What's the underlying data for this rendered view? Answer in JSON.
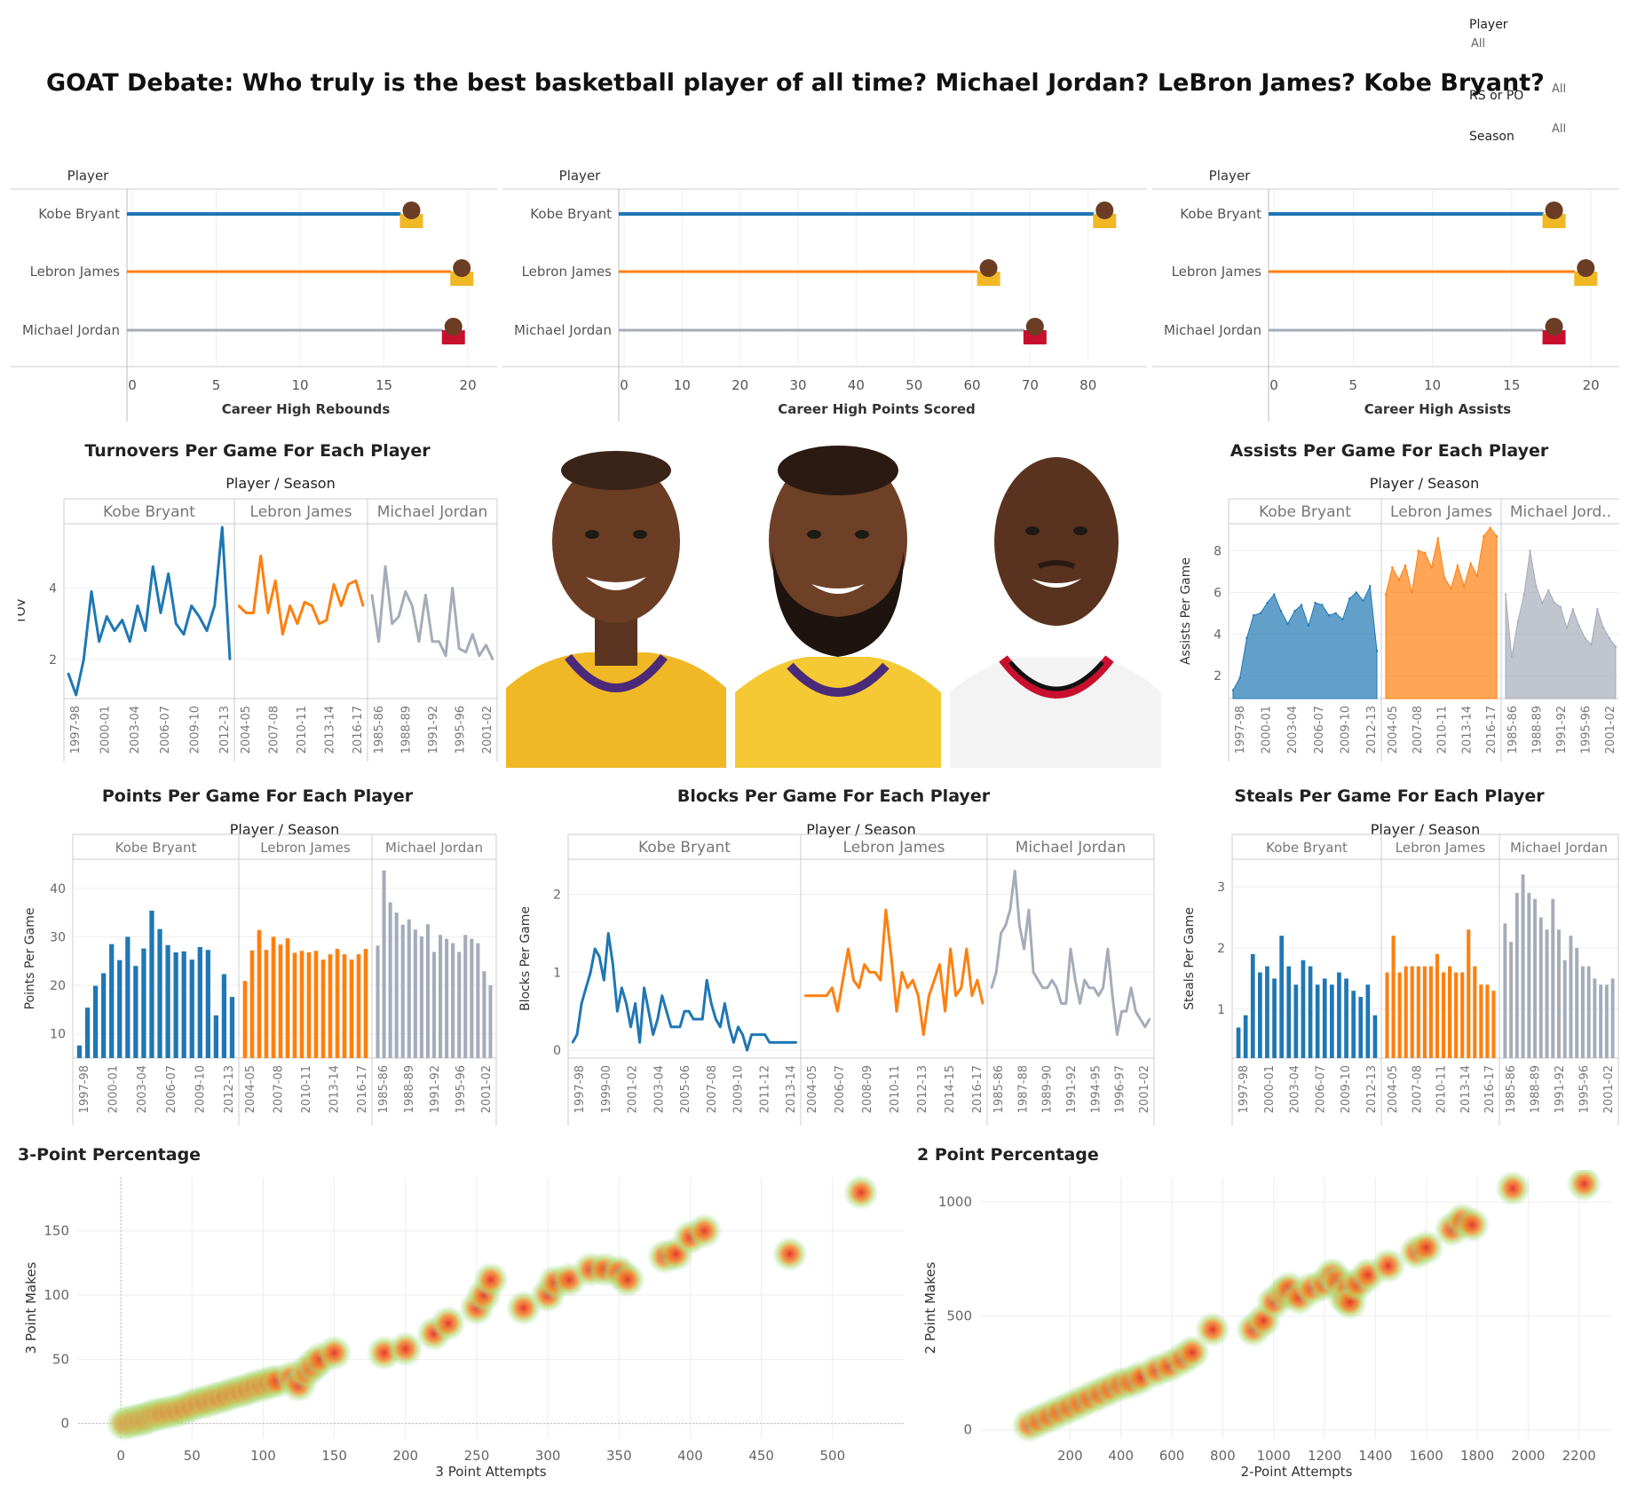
{
  "header": {
    "title": "GOAT Debate: Who truly is the best basketball player of all time? Michael Jordan? LeBron James? Kobe Bryant?"
  },
  "filters": {
    "player_label": "Player",
    "player_value": "All",
    "rs_label": "RS or PO",
    "rs_value": "All",
    "season_label": "Season",
    "season_value": "All"
  },
  "colors": {
    "kobe": "#1f77b4",
    "lebron": "#ff7f0e",
    "jordan": "#a5acb9"
  },
  "icons": [
    "kobe-avatar-icon",
    "lebron-avatar-icon",
    "jordan-avatar-icon"
  ],
  "chart_data": [
    {
      "id": "rebounds",
      "type": "bar",
      "title": "",
      "xlabel": "Career High Rebounds",
      "ylabel": "Player",
      "categories": [
        "Kobe Bryant",
        "Lebron James",
        "Michael Jordan"
      ],
      "values": [
        16,
        19,
        18.5
      ],
      "xlim": [
        0,
        21
      ],
      "ticks": [
        0,
        5,
        10,
        15,
        20
      ]
    },
    {
      "id": "points",
      "type": "bar",
      "title": "",
      "xlabel": "Career High Points Scored",
      "ylabel": "Player",
      "categories": [
        "Kobe Bryant",
        "Lebron James",
        "Michael Jordan"
      ],
      "values": [
        81,
        61,
        69
      ],
      "xlim": [
        0,
        88
      ],
      "ticks": [
        0,
        10,
        20,
        30,
        40,
        50,
        60,
        70,
        80
      ]
    },
    {
      "id": "assists",
      "type": "bar",
      "title": "",
      "xlabel": "Career High Assists",
      "ylabel": "Player",
      "categories": [
        "Kobe Bryant",
        "Lebron James",
        "Michael Jordan"
      ],
      "values": [
        17,
        19,
        17
      ],
      "xlim": [
        0,
        21
      ],
      "ticks": [
        0,
        5,
        10,
        15,
        20
      ]
    },
    {
      "id": "tov",
      "type": "line",
      "title": "Turnovers Per Game For Each Player",
      "header": "Player / Season",
      "ylabel": "TOV",
      "ylim": [
        0.9,
        5.8
      ],
      "yticks": [
        2,
        4
      ],
      "panels": [
        {
          "name": "Kobe Bryant",
          "ticks": [
            "1997-98",
            "2000-01",
            "2003-04",
            "2006-07",
            "2009-10",
            "2012-13"
          ],
          "values": [
            1.6,
            1.0,
            2.0,
            3.9,
            2.5,
            3.2,
            2.8,
            3.1,
            2.5,
            3.5,
            2.8,
            4.6,
            3.3,
            4.4,
            3.0,
            2.7,
            3.5,
            3.2,
            2.8,
            3.5,
            5.7,
            2.0
          ]
        },
        {
          "name": "Lebron James",
          "ticks": [
            "2004-05",
            "2007-08",
            "2010-11",
            "2013-14",
            "2016-17"
          ],
          "values": [
            3.5,
            3.3,
            3.3,
            4.9,
            3.3,
            4.2,
            2.7,
            3.5,
            3.0,
            3.6,
            3.5,
            3.0,
            3.1,
            4.1,
            3.5,
            4.1,
            4.2,
            3.5
          ]
        },
        {
          "name": "Michael Jordan",
          "ticks": [
            "1985-86",
            "1988-89",
            "1991-92",
            "1995-96",
            "2001-02"
          ],
          "values": [
            3.8,
            2.5,
            4.6,
            3.0,
            3.2,
            3.9,
            3.5,
            2.5,
            3.8,
            2.5,
            2.5,
            2.1,
            4.0,
            2.3,
            2.2,
            2.7,
            2.1,
            2.4,
            2.0
          ]
        }
      ]
    },
    {
      "id": "ast",
      "type": "area",
      "title": "Assists Per Game For Each Player",
      "header": "Player / Season",
      "ylabel": "Assists Per Game",
      "ylim": [
        0.9,
        9.3
      ],
      "yticks": [
        2,
        4,
        6,
        8
      ],
      "panels": [
        {
          "name": "Kobe Bryant",
          "ticks": [
            "1997-98",
            "2000-01",
            "2003-04",
            "2006-07",
            "2009-10",
            "2012-13"
          ],
          "values": [
            1.3,
            1.9,
            3.8,
            4.9,
            5.0,
            5.5,
            5.9,
            5.1,
            4.5,
            5.1,
            5.4,
            4.4,
            5.5,
            5.4,
            4.9,
            5.0,
            4.7,
            5.7,
            6.0,
            5.6,
            6.3,
            3.2
          ]
        },
        {
          "name": "Lebron James",
          "ticks": [
            "2004-05",
            "2007-08",
            "2010-11",
            "2013-14",
            "2016-17"
          ],
          "values": [
            5.9,
            7.2,
            6.6,
            7.3,
            6.0,
            8.0,
            7.9,
            7.2,
            8.6,
            6.7,
            6.2,
            7.3,
            6.3,
            7.4,
            6.8,
            8.7,
            9.1,
            8.7
          ]
        },
        {
          "name": "Michael Jord..",
          "ticks": [
            "1985-86",
            "1988-89",
            "1991-92",
            "1995-96",
            "2001-02"
          ],
          "values": [
            5.9,
            2.9,
            4.6,
            5.9,
            8.0,
            6.3,
            5.5,
            6.1,
            5.5,
            5.3,
            4.3,
            5.2,
            4.4,
            3.8,
            3.5,
            5.2,
            4.3,
            3.8,
            3.4
          ]
        }
      ]
    },
    {
      "id": "pts",
      "type": "bar",
      "title": "Points Per Game For Each Player",
      "header": "Player / Season",
      "ylabel": "Points Per Game",
      "ylim": [
        5,
        46
      ],
      "yticks": [
        10,
        20,
        30,
        40
      ],
      "panels": [
        {
          "name": "Kobe Bryant",
          "ticks": [
            "1997-98",
            "2000-01",
            "2003-04",
            "2006-07",
            "2009-10",
            "2012-13"
          ],
          "values": [
            7.6,
            15.4,
            19.9,
            22.5,
            28.5,
            25.2,
            30.0,
            24.0,
            27.6,
            35.4,
            31.6,
            28.3,
            26.8,
            27.0,
            25.3,
            27.9,
            27.3,
            13.8,
            22.3,
            17.6
          ]
        },
        {
          "name": "Lebron James",
          "ticks": [
            "2004-05",
            "2007-08",
            "2010-11",
            "2013-14",
            "2016-17"
          ],
          "values": [
            20.9,
            27.2,
            31.4,
            27.3,
            30.0,
            28.4,
            29.7,
            26.7,
            27.1,
            26.8,
            27.1,
            25.3,
            26.4,
            27.5,
            26.4,
            25.3,
            26.4,
            27.5
          ]
        },
        {
          "name": "Michael Jordan",
          "ticks": [
            "1985-86",
            "1988-89",
            "1991-92",
            "1995-96",
            "2001-02"
          ],
          "values": [
            28.2,
            43.7,
            37.1,
            35.0,
            32.5,
            33.6,
            31.5,
            30.1,
            32.6,
            26.9,
            30.4,
            29.6,
            28.7,
            26.9,
            30.4,
            29.6,
            28.7,
            22.9,
            20.0
          ]
        }
      ]
    },
    {
      "id": "blk",
      "type": "line",
      "title": "Blocks Per Game For Each Player",
      "header": "Player / Season",
      "ylabel": "Blocks Per Game",
      "ylim": [
        -0.1,
        2.45
      ],
      "yticks": [
        0,
        1,
        2
      ],
      "panels": [
        {
          "name": "Kobe Bryant",
          "ticks": [
            "1997-98",
            "1999-00",
            "2001-02",
            "2003-04",
            "2005-06",
            "2007-08",
            "2009-10",
            "2011-12",
            "2013-14"
          ],
          "values": [
            0.1,
            0.2,
            0.6,
            0.8,
            1.0,
            1.3,
            1.2,
            0.9,
            1.5,
            1.1,
            0.5,
            0.8,
            0.6,
            0.3,
            0.6,
            0.1,
            0.8,
            0.5,
            0.2,
            0.4,
            0.7,
            0.5,
            0.3,
            0.3,
            0.3,
            0.5,
            0.5,
            0.4,
            0.4,
            0.4,
            0.9,
            0.6,
            0.4,
            0.3,
            0.6,
            0.3,
            0.1,
            0.3,
            0.2,
            0.0,
            0.2,
            0.2,
            0.2,
            0.2,
            0.1,
            0.1,
            0.1,
            0.1,
            0.1,
            0.1,
            0.1
          ]
        },
        {
          "name": "Lebron James",
          "ticks": [
            "2004-05",
            "2006-07",
            "2008-09",
            "2010-11",
            "2012-13",
            "2014-15",
            "2016-17"
          ],
          "values": [
            0.7,
            0.7,
            0.7,
            0.7,
            0.7,
            0.8,
            0.5,
            0.9,
            1.3,
            0.9,
            0.8,
            1.1,
            1.0,
            1.0,
            0.9,
            1.8,
            1.2,
            0.5,
            1.0,
            0.8,
            0.9,
            0.7,
            0.2,
            0.7,
            0.9,
            1.1,
            0.5,
            1.3,
            0.7,
            0.8,
            1.3,
            0.7,
            0.9,
            0.6
          ]
        },
        {
          "name": "Michael Jordan",
          "ticks": [
            "1985-86",
            "1987-88",
            "1989-90",
            "1991-92",
            "1994-95",
            "1996-97",
            "2001-02"
          ],
          "values": [
            0.8,
            1.0,
            1.5,
            1.6,
            1.8,
            2.3,
            1.6,
            1.3,
            1.8,
            1.0,
            0.9,
            0.8,
            0.8,
            0.9,
            0.8,
            0.6,
            0.6,
            1.3,
            0.9,
            0.6,
            0.9,
            0.8,
            0.8,
            0.7,
            0.8,
            1.3,
            0.7,
            0.2,
            0.5,
            0.5,
            0.8,
            0.5,
            0.4,
            0.3,
            0.4
          ]
        }
      ]
    },
    {
      "id": "stl",
      "type": "bar",
      "title": "Steals Per Game For Each Player",
      "header": "Player / Season",
      "ylabel": "Steals Per Game",
      "ylim": [
        0.2,
        3.45
      ],
      "yticks": [
        1,
        2,
        3
      ],
      "panels": [
        {
          "name": "Kobe Bryant",
          "ticks": [
            "1997-98",
            "2000-01",
            "2003-04",
            "2006-07",
            "2009-10",
            "2012-13"
          ],
          "values": [
            0.7,
            0.9,
            1.9,
            1.6,
            1.7,
            1.5,
            2.2,
            1.7,
            1.4,
            1.8,
            1.7,
            1.4,
            1.5,
            1.4,
            1.6,
            1.5,
            1.3,
            1.2,
            1.4,
            0.9
          ]
        },
        {
          "name": "Lebron James",
          "ticks": [
            "2004-05",
            "2007-08",
            "2010-11",
            "2013-14",
            "2016-17"
          ],
          "values": [
            1.6,
            2.2,
            1.6,
            1.7,
            1.7,
            1.7,
            1.7,
            1.7,
            1.9,
            1.6,
            1.7,
            1.6,
            1.6,
            2.3,
            1.7,
            1.4,
            1.4,
            1.3
          ]
        },
        {
          "name": "Michael Jordan",
          "ticks": [
            "1985-86",
            "1988-89",
            "1991-92",
            "1995-96",
            "2001-02"
          ],
          "values": [
            2.4,
            2.1,
            2.9,
            3.2,
            2.9,
            2.8,
            2.5,
            2.3,
            2.8,
            2.3,
            1.8,
            2.2,
            2.0,
            1.7,
            1.7,
            1.5,
            1.4,
            1.4,
            1.5
          ]
        }
      ]
    },
    {
      "id": "three",
      "type": "heatmap",
      "title": "3-Point Percentage",
      "xlabel": "3 Point Attempts",
      "ylabel": "3 Point Makes",
      "xlim": [
        -30,
        550
      ],
      "ylim": [
        -12,
        192
      ],
      "xticks": [
        0,
        50,
        100,
        150,
        200,
        250,
        300,
        350,
        400,
        450,
        500
      ],
      "yticks": [
        0,
        50,
        100,
        150
      ],
      "points": [
        [
          2,
          0
        ],
        [
          6,
          1
        ],
        [
          10,
          2
        ],
        [
          14,
          3
        ],
        [
          18,
          4
        ],
        [
          22,
          6
        ],
        [
          26,
          7
        ],
        [
          30,
          8
        ],
        [
          35,
          9
        ],
        [
          40,
          10
        ],
        [
          45,
          12
        ],
        [
          50,
          14
        ],
        [
          55,
          16
        ],
        [
          60,
          17
        ],
        [
          65,
          19
        ],
        [
          70,
          20
        ],
        [
          75,
          22
        ],
        [
          80,
          24
        ],
        [
          85,
          25
        ],
        [
          90,
          27
        ],
        [
          95,
          29
        ],
        [
          100,
          30
        ],
        [
          105,
          32
        ],
        [
          110,
          33
        ],
        [
          120,
          36
        ],
        [
          125,
          30
        ],
        [
          130,
          40
        ],
        [
          135,
          45
        ],
        [
          140,
          50
        ],
        [
          150,
          55
        ],
        [
          185,
          55
        ],
        [
          200,
          58
        ],
        [
          220,
          70
        ],
        [
          230,
          78
        ],
        [
          250,
          90
        ],
        [
          255,
          100
        ],
        [
          260,
          112
        ],
        [
          283,
          90
        ],
        [
          300,
          100
        ],
        [
          305,
          110
        ],
        [
          315,
          112
        ],
        [
          330,
          120
        ],
        [
          340,
          120
        ],
        [
          350,
          118
        ],
        [
          356,
          112
        ],
        [
          382,
          130
        ],
        [
          390,
          132
        ],
        [
          400,
          145
        ],
        [
          410,
          150
        ],
        [
          470,
          132
        ],
        [
          520,
          180
        ]
      ]
    },
    {
      "id": "two",
      "type": "heatmap",
      "title": "2 Point Percentage",
      "xlabel": "2-Point Attempts",
      "ylabel": "2 Point Makes",
      "xlim": [
        -150,
        2330
      ],
      "ylim": [
        -40,
        1110
      ],
      "xticks": [
        200,
        400,
        600,
        800,
        1000,
        1200,
        1400,
        1600,
        1800,
        2000,
        2200
      ],
      "yticks": [
        0,
        500,
        1000
      ],
      "points": [
        [
          40,
          20
        ],
        [
          80,
          40
        ],
        [
          120,
          60
        ],
        [
          160,
          80
        ],
        [
          200,
          100
        ],
        [
          240,
          120
        ],
        [
          280,
          140
        ],
        [
          320,
          160
        ],
        [
          360,
          180
        ],
        [
          400,
          200
        ],
        [
          440,
          210
        ],
        [
          480,
          230
        ],
        [
          540,
          260
        ],
        [
          590,
          280
        ],
        [
          640,
          310
        ],
        [
          680,
          340
        ],
        [
          760,
          440
        ],
        [
          920,
          440
        ],
        [
          960,
          480
        ],
        [
          1000,
          560
        ],
        [
          1040,
          600
        ],
        [
          1060,
          620
        ],
        [
          1100,
          580
        ],
        [
          1150,
          620
        ],
        [
          1200,
          640
        ],
        [
          1230,
          680
        ],
        [
          1250,
          650
        ],
        [
          1280,
          580
        ],
        [
          1290,
          620
        ],
        [
          1300,
          560
        ],
        [
          1330,
          640
        ],
        [
          1370,
          680
        ],
        [
          1450,
          720
        ],
        [
          1560,
          780
        ],
        [
          1600,
          800
        ],
        [
          1700,
          880
        ],
        [
          1740,
          920
        ],
        [
          1780,
          900
        ],
        [
          1940,
          1060
        ],
        [
          2220,
          1080
        ]
      ]
    }
  ]
}
